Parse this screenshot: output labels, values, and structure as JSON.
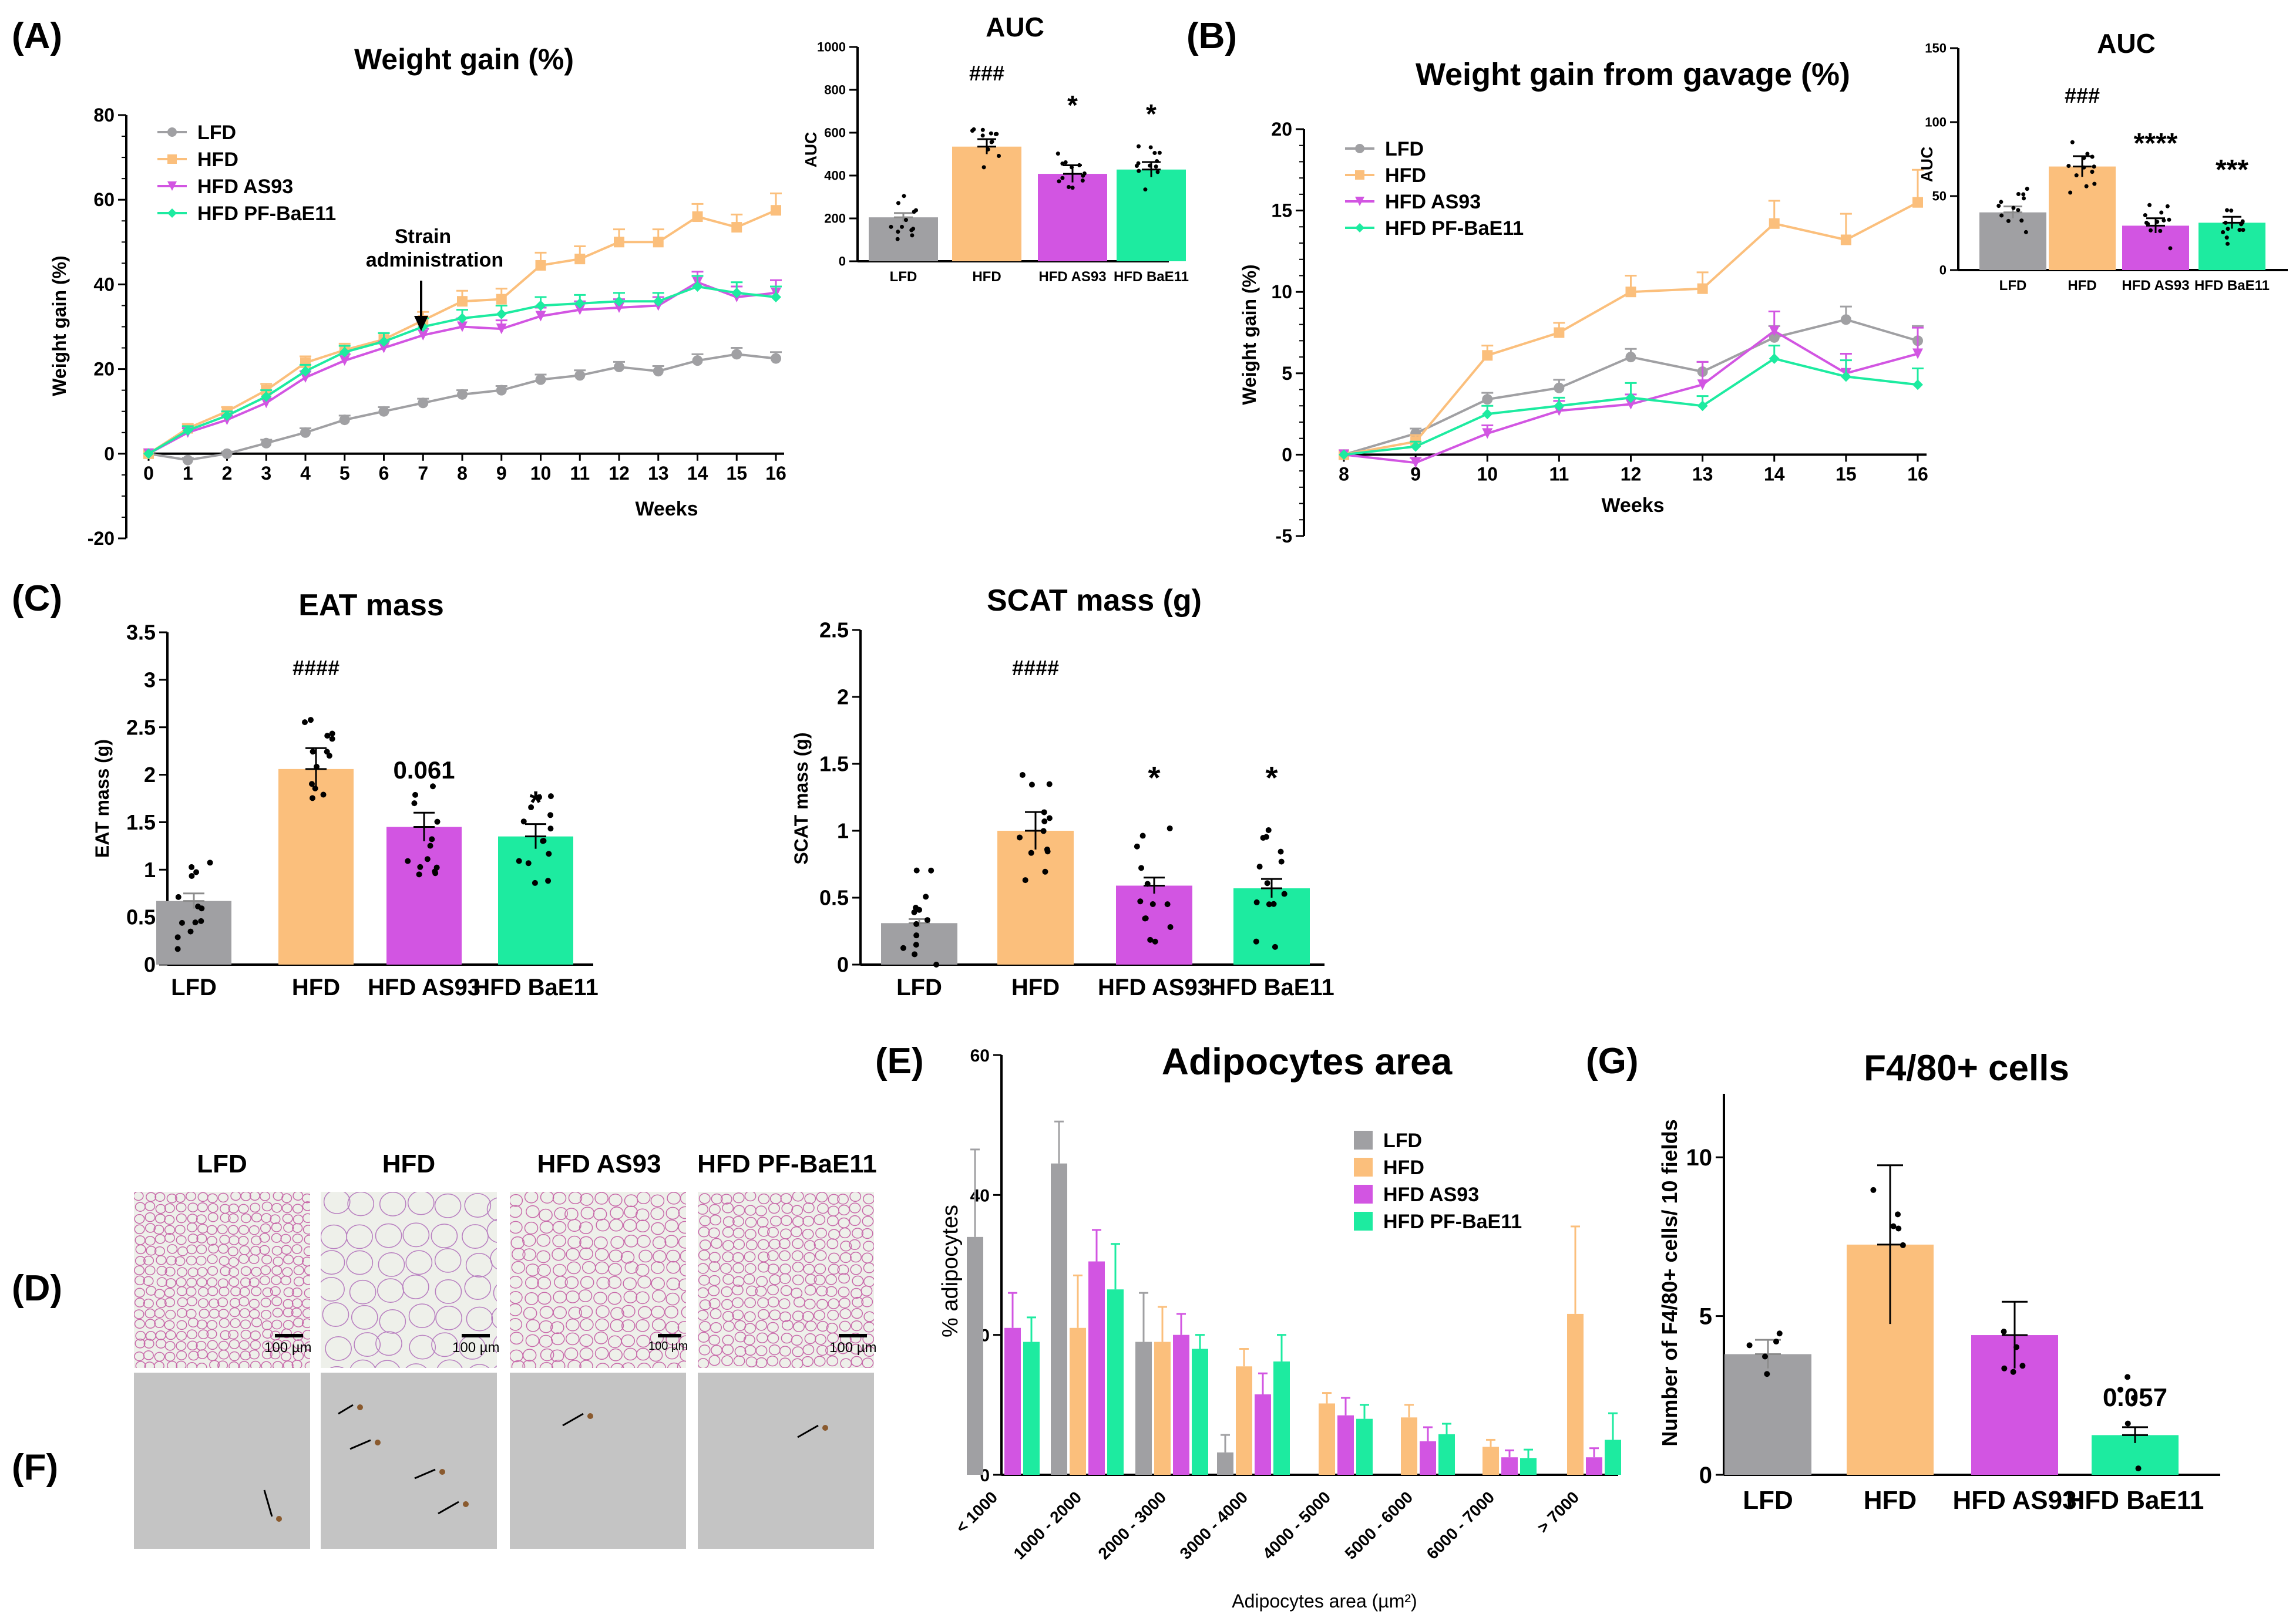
{
  "colors": {
    "LFD": "#a0a0a3",
    "HFD": "#fbbf7c",
    "AS93": "#d255e2",
    "BaE11": "#1deba0",
    "axis": "#000000",
    "err_lfd": "#8c8c8c"
  },
  "chart_data": [
    {
      "id": "A",
      "panel_letter": "(A)",
      "type": "line",
      "title": "Weight gain (%)",
      "xlabel": "Weeks",
      "ylabel": "Weight gain (%)",
      "x": [
        0,
        1,
        2,
        3,
        4,
        5,
        6,
        7,
        8,
        9,
        10,
        11,
        12,
        13,
        14,
        15,
        16
      ],
      "ylim": [
        -20,
        80
      ],
      "yticks": [
        "-20",
        "0",
        "20",
        "40",
        "60",
        "80"
      ],
      "annotation": [
        "Strain",
        "administration"
      ],
      "series": [
        {
          "name": "LFD",
          "color": "#a0a0a3",
          "marker": "circle",
          "values": [
            0,
            -1.5,
            0,
            2.5,
            5,
            8,
            10,
            12,
            14,
            15,
            17.5,
            18.5,
            20.5,
            19.5,
            22,
            23.5,
            22.5
          ],
          "err": [
            0,
            0.5,
            0.5,
            0.8,
            1,
            1,
            1,
            1,
            1,
            1,
            1.2,
            1.2,
            1.2,
            1.2,
            1.5,
            1.5,
            1.5
          ]
        },
        {
          "name": "HFD",
          "color": "#fbbf7c",
          "marker": "square",
          "values": [
            0,
            6,
            10,
            15,
            21.5,
            24.5,
            27,
            31.5,
            36,
            36.5,
            44.5,
            46,
            50,
            50,
            56,
            53.5,
            57.5
          ],
          "err": [
            0,
            1,
            1,
            1.5,
            1.5,
            1.5,
            1.5,
            2,
            2.5,
            2.5,
            3,
            3,
            3,
            3,
            3,
            3,
            4
          ]
        },
        {
          "name": "HFD AS93",
          "color": "#d255e2",
          "marker": "triangle-down",
          "values": [
            0,
            5,
            8,
            12,
            18,
            22,
            25,
            28,
            30,
            29.5,
            32.5,
            34,
            34.5,
            35,
            40.5,
            37,
            38
          ],
          "err": [
            0,
            1,
            1,
            1,
            1.5,
            1.5,
            1.5,
            1.5,
            2,
            2,
            2,
            2,
            2,
            2,
            2.5,
            2.5,
            3
          ]
        },
        {
          "name": "HFD PF-BaE11",
          "color": "#1deba0",
          "marker": "diamond",
          "values": [
            0,
            5.5,
            9,
            13.5,
            19.5,
            24,
            26.5,
            30,
            32,
            33,
            35,
            35.5,
            36,
            36,
            39.5,
            38,
            37
          ],
          "err": [
            0,
            1,
            1,
            1.5,
            1.5,
            1.5,
            2,
            2,
            2,
            2,
            2,
            2,
            2,
            2,
            2.5,
            2.5,
            2.5
          ]
        }
      ]
    },
    {
      "id": "A-AUC",
      "type": "bar",
      "title": "AUC",
      "ylabel": "AUC",
      "categories": [
        "LFD",
        "HFD",
        "HFD AS93",
        "HFD BaE11"
      ],
      "values": [
        205,
        535,
        408,
        428
      ],
      "err": [
        20,
        35,
        40,
        35
      ],
      "ylim": [
        0,
        1000
      ],
      "yticks": [
        "0",
        "200",
        "400",
        "600",
        "800",
        "1000"
      ],
      "labels": [
        "",
        "###",
        "*",
        "*"
      ]
    },
    {
      "id": "B",
      "panel_letter": "(B)",
      "type": "line",
      "title": "Weight gain from gavage (%)",
      "xlabel": "Weeks",
      "ylabel": "Weight gain (%)",
      "x": [
        8,
        9,
        10,
        11,
        12,
        13,
        14,
        15,
        16
      ],
      "ylim": [
        -5,
        20
      ],
      "yticks": [
        "-5",
        "0",
        "5",
        "10",
        "15",
        "20"
      ],
      "series": [
        {
          "name": "LFD",
          "color": "#a0a0a3",
          "marker": "circle",
          "values": [
            0,
            1.3,
            3.4,
            4.1,
            6,
            5.1,
            7.2,
            8.3,
            7
          ],
          "err": [
            0,
            0.3,
            0.4,
            0.5,
            0.5,
            0.6,
            0.7,
            0.8,
            0.9
          ]
        },
        {
          "name": "HFD",
          "color": "#fbbf7c",
          "marker": "square",
          "values": [
            0,
            0.8,
            6.1,
            7.5,
            10,
            10.2,
            14.2,
            13.2,
            15.5
          ],
          "err": [
            0,
            0.4,
            0.6,
            0.6,
            1,
            1,
            1.4,
            1.6,
            2
          ]
        },
        {
          "name": "HFD AS93",
          "color": "#d255e2",
          "marker": "triangle-down",
          "values": [
            0,
            -0.5,
            1.3,
            2.7,
            3.1,
            4.3,
            7.6,
            5,
            6.2
          ],
          "err": [
            0,
            0.3,
            0.5,
            0.6,
            0.6,
            1.4,
            1.2,
            1.2,
            1.6
          ]
        },
        {
          "name": "HFD PF-BaE11",
          "color": "#1deba0",
          "marker": "diamond",
          "values": [
            0,
            0.5,
            2.5,
            3,
            3.5,
            3,
            5.9,
            4.8,
            4.3
          ],
          "err": [
            0,
            0.3,
            0.5,
            0.5,
            0.9,
            0.6,
            0.8,
            1,
            1
          ]
        }
      ]
    },
    {
      "id": "B-AUC",
      "type": "bar",
      "title": "AUC",
      "ylabel": "AUC",
      "categories": [
        "LFD",
        "HFD",
        "HFD AS93",
        "HFD BaE11"
      ],
      "values": [
        39,
        70,
        30,
        32
      ],
      "err": [
        4,
        7,
        5,
        4
      ],
      "ylim": [
        0,
        150
      ],
      "yticks": [
        "0",
        "50",
        "100",
        "150"
      ],
      "labels": [
        "",
        "###",
        "****",
        "***"
      ]
    },
    {
      "id": "C-EAT",
      "panel_letter": "(C)",
      "type": "bar",
      "title": "EAT mass",
      "ylabel": "EAT mass (g)",
      "categories": [
        "LFD",
        "HFD",
        "HFD AS93",
        "HFD BaE11"
      ],
      "values": [
        0.67,
        2.06,
        1.45,
        1.35
      ],
      "err": [
        0.08,
        0.22,
        0.15,
        0.13
      ],
      "ylim": [
        0,
        3.5
      ],
      "yticks": [
        "0",
        "0.5",
        "1",
        "1.5",
        "2",
        "2.5",
        "3",
        "3.5"
      ],
      "labels": [
        "",
        "####",
        "0.061",
        "*"
      ]
    },
    {
      "id": "C-SCAT",
      "type": "bar",
      "title": "SCAT mass (g)",
      "ylabel": "SCAT mass (g)",
      "categories": [
        "LFD",
        "HFD",
        "HFD AS93",
        "HFD BaE11"
      ],
      "values": [
        0.31,
        1.0,
        0.59,
        0.57
      ],
      "err": [
        0.03,
        0.14,
        0.06,
        0.07
      ],
      "ylim": [
        0,
        2.5
      ],
      "yticks": [
        "0",
        "0.5",
        "1",
        "1.5",
        "2",
        "2.5"
      ],
      "labels": [
        "",
        "####",
        "*",
        "*"
      ]
    },
    {
      "id": "E",
      "panel_letter": "(E)",
      "type": "bar",
      "title": "Adipocytes area",
      "xlabel": "Adipocytes area (µm²)",
      "ylabel": "% adipocytes",
      "categories": [
        "< 1000",
        "1000 - 2000",
        "2000 - 3000",
        "3000 - 4000",
        "4000 - 5000",
        "5000 - 6000",
        "6000 - 7000",
        "> 7000"
      ],
      "ylim": [
        0,
        60
      ],
      "yticks": [
        "0",
        "20",
        "40",
        "60"
      ],
      "series": [
        {
          "name": "LFD",
          "color": "#a0a0a3",
          "values": [
            34,
            44.5,
            19,
            3.2,
            0,
            0,
            0,
            0
          ],
          "err": [
            12.5,
            6,
            7,
            2.5,
            0,
            0,
            0,
            0
          ]
        },
        {
          "name": "HFD",
          "color": "#fbbf7c",
          "values": [
            0,
            21,
            19,
            15.5,
            10.2,
            8.2,
            4,
            23
          ],
          "err": [
            0,
            7.5,
            5,
            2.5,
            1.5,
            1.8,
            1,
            12.5
          ]
        },
        {
          "name": "HFD AS93",
          "color": "#d255e2",
          "values": [
            21,
            30.5,
            20,
            11.5,
            8.5,
            4.8,
            2.5,
            2.5
          ],
          "err": [
            5,
            4.5,
            3,
            3,
            2.5,
            2,
            1,
            1.3
          ]
        },
        {
          "name": "HFD PF-BaE11",
          "color": "#1deba0",
          "values": [
            19,
            26.5,
            18,
            16.2,
            8,
            5.8,
            2.4,
            5
          ],
          "err": [
            3.5,
            6.5,
            2,
            3.8,
            2,
            1.5,
            1.2,
            3.8
          ]
        }
      ]
    },
    {
      "id": "G",
      "panel_letter": "(G)",
      "type": "bar",
      "title": "F4/80+ cells",
      "ylabel": "Number of F4/80+ cells/ 10 fields",
      "categories": [
        "LFD",
        "HFD",
        "HFD AS93",
        "HFD BaE11"
      ],
      "values": [
        3.8,
        7.25,
        4.4,
        1.25
      ],
      "err": [
        0.45,
        2.5,
        1.05,
        0.25
      ],
      "ylim": [
        0,
        12
      ],
      "yticks": [
        "0",
        "5",
        "10"
      ],
      "labels": [
        "",
        "",
        "",
        "0.057"
      ]
    }
  ],
  "panel_d": {
    "letter": "(D)",
    "columns": [
      "LFD",
      "HFD",
      "HFD AS93",
      "HFD PF-BaE11"
    ],
    "scale_labels": [
      "100 µm",
      "100 µm",
      "100 µm",
      "100 µm"
    ]
  },
  "panel_f": {
    "letter": "(F)"
  }
}
